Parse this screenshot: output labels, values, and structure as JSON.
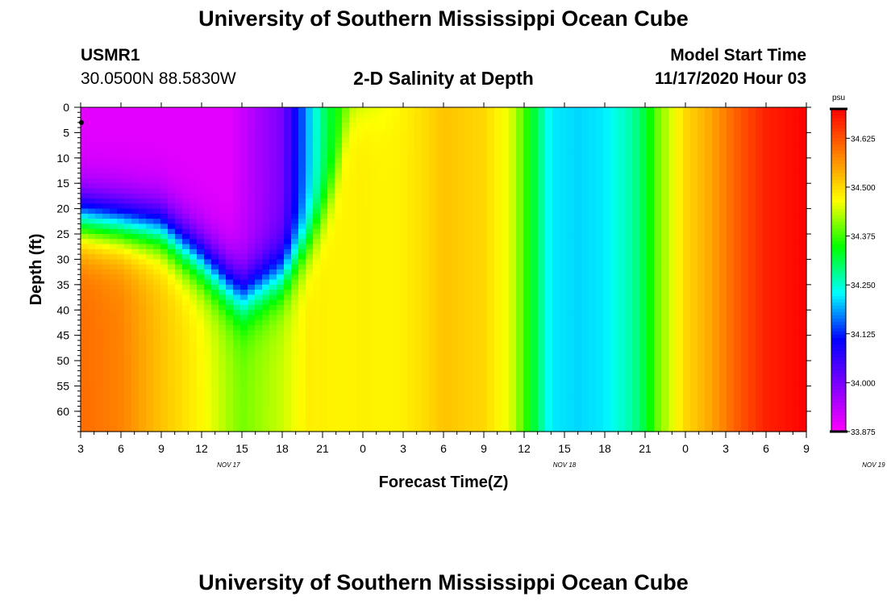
{
  "header": {
    "title": "University of Southern Mississippi Ocean Cube",
    "station": "USMR1",
    "coordinates": "30.0500N 88.5830W",
    "subtitle": "2-D Salinity at Depth",
    "model_start_label": "Model Start Time",
    "model_start_value": "11/17/2020 Hour 03"
  },
  "footer": {
    "title": "University of Southern Mississippi Ocean Cube"
  },
  "chart_data": {
    "type": "heatmap",
    "title": "2-D Salinity at Depth",
    "xlabel": "Forecast Time(Z)",
    "ylabel": "Depth (ft)",
    "x_start": "11/17/2020 03Z",
    "x_tick_labels": [
      "3",
      "6",
      "9",
      "12",
      "15",
      "18",
      "21",
      "0",
      "3",
      "6",
      "9",
      "12",
      "15",
      "18",
      "21",
      "0",
      "3",
      "6",
      "9"
    ],
    "x_day_labels": [
      {
        "label": "NOV 17",
        "at_hour": 14
      },
      {
        "label": "NOV 18",
        "at_hour": 39
      },
      {
        "label": "NOV 19",
        "at_hour": 62
      }
    ],
    "xlim_hours": [
      3,
      57
    ],
    "y_tick_labels": [
      "0",
      "5",
      "10",
      "15",
      "20",
      "25",
      "30",
      "35",
      "40",
      "45",
      "50",
      "55",
      "60"
    ],
    "ylim": [
      0,
      64
    ],
    "y_inverted": true,
    "colorbar": {
      "unit": "psu",
      "range": [
        33.875,
        34.7
      ],
      "tick_labels": [
        "33.875",
        "34.000",
        "34.125",
        "34.250",
        "34.375",
        "34.500",
        "34.625"
      ],
      "colors": [
        "#ff00ff",
        "#8000ff",
        "#0000ff",
        "#00ffff",
        "#00ff00",
        "#ffff00",
        "#ff8000",
        "#ff0000"
      ]
    },
    "surface_salinity_by_hour": [
      [
        3,
        33.9
      ],
      [
        14,
        33.9
      ],
      [
        18,
        34.0
      ],
      [
        20,
        34.2
      ],
      [
        21,
        34.29
      ],
      [
        22,
        34.35
      ],
      [
        24,
        34.42
      ],
      [
        27,
        34.47
      ],
      [
        30,
        34.52
      ],
      [
        33,
        34.5
      ],
      [
        35,
        34.45
      ],
      [
        36,
        34.38
      ],
      [
        37,
        34.3
      ],
      [
        38,
        34.22
      ],
      [
        40,
        34.21
      ],
      [
        42,
        34.22
      ],
      [
        44,
        34.27
      ],
      [
        45,
        34.32
      ],
      [
        46,
        34.4
      ],
      [
        48,
        34.5
      ],
      [
        50,
        34.55
      ],
      [
        52,
        34.62
      ],
      [
        54,
        34.67
      ],
      [
        57,
        34.7
      ]
    ],
    "mixed_layer_depth_by_hour": [
      [
        3,
        22
      ],
      [
        9,
        24
      ],
      [
        12,
        30
      ],
      [
        15,
        37
      ],
      [
        18,
        33
      ],
      [
        20,
        26
      ],
      [
        21,
        21
      ],
      [
        22,
        14
      ],
      [
        23,
        0
      ]
    ],
    "deep_salinity_by_hour": [
      [
        3,
        34.6
      ],
      [
        6,
        34.58
      ],
      [
        9,
        34.52
      ],
      [
        12,
        34.47
      ],
      [
        15,
        34.4
      ],
      [
        18,
        34.44
      ],
      [
        21,
        34.5
      ],
      [
        24,
        34.52
      ],
      [
        27,
        34.5
      ],
      [
        30,
        34.5
      ]
    ]
  }
}
